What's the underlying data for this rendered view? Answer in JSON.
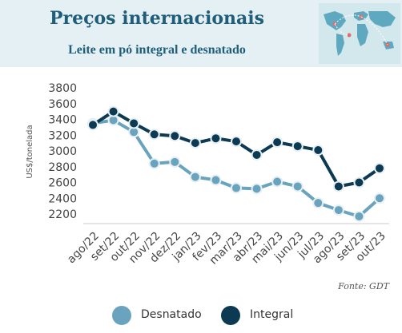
{
  "header": {
    "title": "Preços internacionais",
    "subtitle": "Leite em pó integral e desnatado"
  },
  "source": "Fonte: GDT",
  "icons": {
    "map": "world-map-icon"
  },
  "colors": {
    "desnatado": "#6aa3bd",
    "integral": "#0d3a53",
    "header_bg": "#e4f0f3",
    "title": "#1e5e7a"
  },
  "chart_data": {
    "type": "line",
    "title": "Leite em pó integral e desnatado",
    "ylabel": "US$/tonelada",
    "xlabel": "",
    "categories": [
      "ago/22",
      "set/22",
      "out/22",
      "nov/22",
      "dez/22",
      "jan/23",
      "fev/23",
      "mar/23",
      "abr/23",
      "mai/23",
      "jun/23",
      "jul/23",
      "ago/23",
      "set/23",
      "out/23"
    ],
    "yticks": [
      2200,
      2400,
      2600,
      2800,
      3000,
      3200,
      3400,
      3600,
      3800
    ],
    "ylim": [
      2200,
      3800
    ],
    "grid": false,
    "legend": "bottom",
    "series": [
      {
        "name": "Desnatado",
        "values": [
          3350,
          3390,
          3240,
          2840,
          2860,
          2670,
          2630,
          2530,
          2520,
          2610,
          2550,
          2340,
          2250,
          2170,
          2400
        ]
      },
      {
        "name": "Integral",
        "values": [
          3330,
          3500,
          3350,
          3210,
          3190,
          3100,
          3160,
          3120,
          2950,
          3110,
          3060,
          3010,
          2550,
          2600,
          2780
        ]
      }
    ]
  }
}
